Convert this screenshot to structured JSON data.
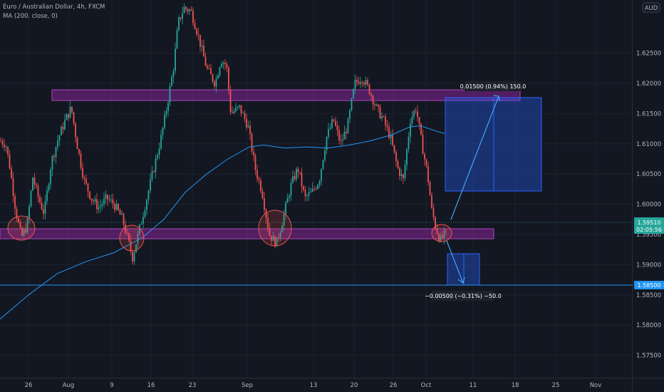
{
  "header": {
    "symbol_line": "Euro / Australian Dollar, 4h, FXCM",
    "indicator_line": "MA (200, close, 0)"
  },
  "currency_badge": "AUD",
  "chart_data": {
    "type": "candlestick",
    "y_ticks": [
      "1.62500",
      "1.62000",
      "1.61500",
      "1.61000",
      "1.60500",
      "1.60000",
      "1.59500",
      "1.59000",
      "1.58500",
      "1.58000",
      "1.57500"
    ],
    "x_ticks": [
      "26",
      "Aug",
      "9",
      "16",
      "23",
      "Sep",
      "13",
      "20",
      "26",
      "Oct",
      "11",
      "18",
      "25",
      "Nov"
    ],
    "ylim": [
      1.5713,
      1.6338
    ],
    "price_tags": {
      "last": "1.59510",
      "countdown": "02:05:56",
      "line": "1.58500"
    },
    "zones": [
      {
        "name": "resistance",
        "from": 1.6148,
        "to": 1.6165
      },
      {
        "name": "support",
        "from": 1.5922,
        "to": 1.5937
      }
    ],
    "long_target_label": "0.01500 (0.94%) 150.0",
    "short_target_label": "−0.00500 (−0.31%) −50.0",
    "horizontal_line": 1.585,
    "colors": {
      "up": "#26a69a",
      "down": "#ef5350",
      "ma": "#2196f3",
      "zone": "#9c27b0",
      "box": "#2962ff"
    }
  }
}
